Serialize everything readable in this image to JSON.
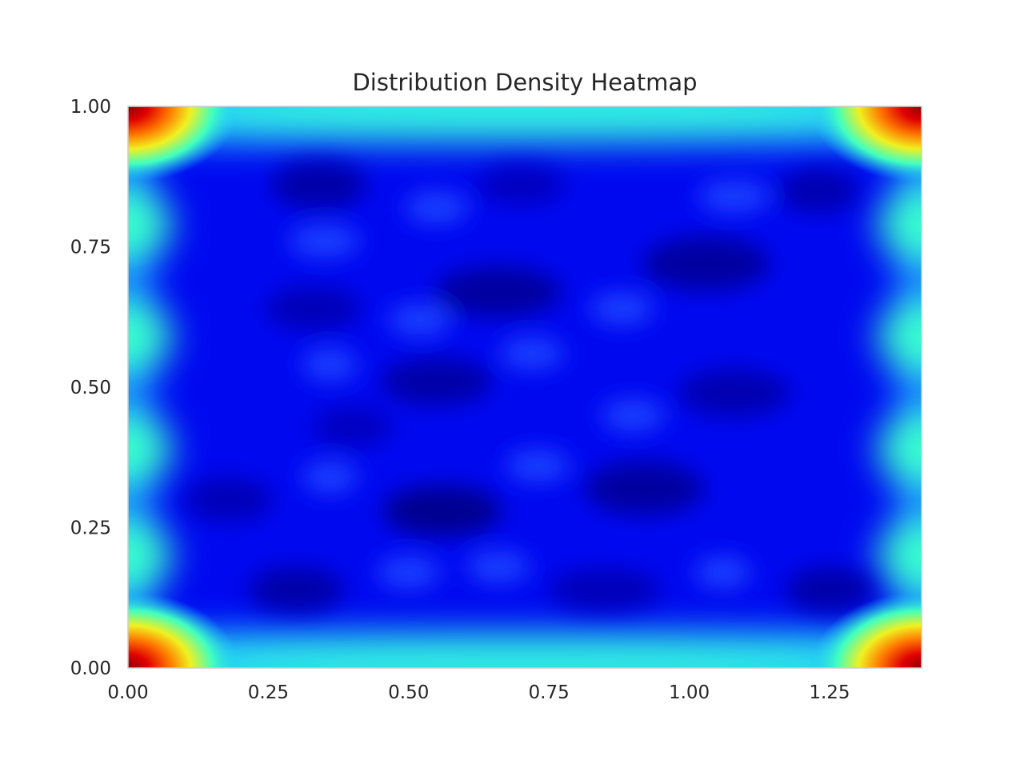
{
  "chart_data": {
    "type": "heatmap",
    "title": "Distribution Density Heatmap",
    "xlabel": "",
    "ylabel": "",
    "xlim": [
      0.0,
      1.414
    ],
    "ylim": [
      0.0,
      1.0
    ],
    "x_ticks": [
      {
        "value": 0.0,
        "label": "0.00"
      },
      {
        "value": 0.25,
        "label": "0.25"
      },
      {
        "value": 0.5,
        "label": "0.50"
      },
      {
        "value": 0.75,
        "label": "0.75"
      },
      {
        "value": 1.0,
        "label": "1.00"
      },
      {
        "value": 1.25,
        "label": "1.25"
      }
    ],
    "y_ticks": [
      {
        "value": 0.0,
        "label": "0.00"
      },
      {
        "value": 0.25,
        "label": "0.25"
      },
      {
        "value": 0.5,
        "label": "0.50"
      },
      {
        "value": 0.75,
        "label": "0.75"
      },
      {
        "value": 1.0,
        "label": "1.00"
      }
    ],
    "colormap": "jet",
    "grid": false,
    "legend": "none",
    "peaks": [
      {
        "x": 0.0,
        "y": 0.0,
        "level": 1.0
      },
      {
        "x": 1.414,
        "y": 0.0,
        "level": 1.0
      },
      {
        "x": 0.0,
        "y": 1.0,
        "level": 1.0
      },
      {
        "x": 1.414,
        "y": 1.0,
        "level": 1.0
      }
    ]
  }
}
